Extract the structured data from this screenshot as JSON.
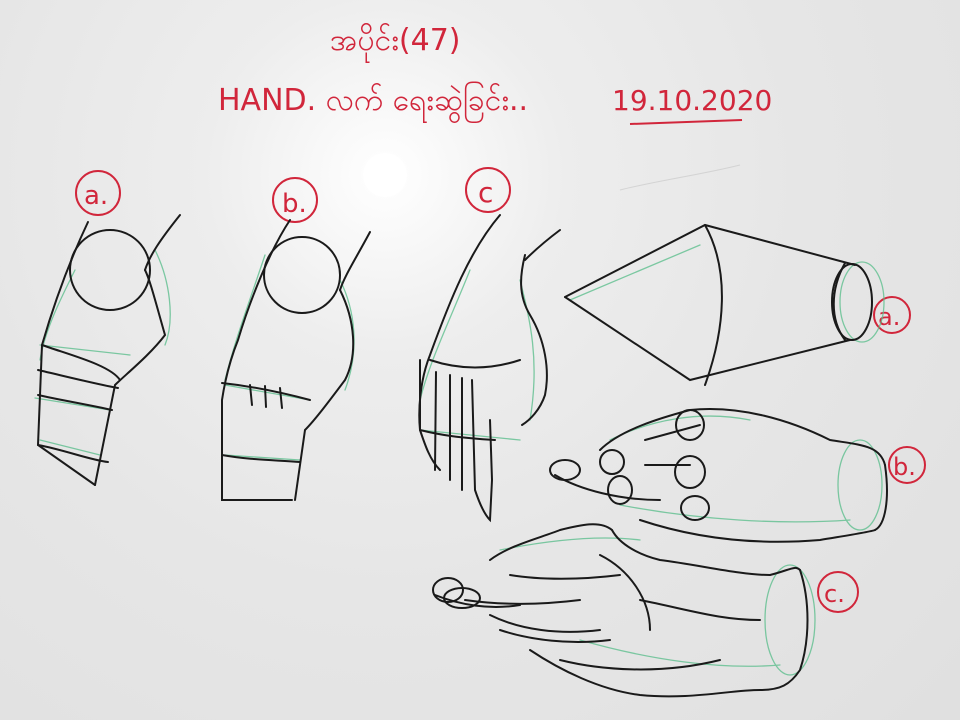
{
  "heading": {
    "lesson_number": "အပိုင်း(47)",
    "subject": "HAND. လက် ရေးဆွဲခြင်း..",
    "date": "19.10.2020"
  },
  "row_labels": {
    "left_a": "a.",
    "left_b": "b.",
    "left_c": "c",
    "right_a": "a.",
    "right_b": "b.",
    "right_c": "c."
  },
  "colors": {
    "marker_red": "#d1263b",
    "marker_black": "#1a1a1a",
    "guide_green": "#5fbf8f",
    "board_white": "#eaeaea"
  }
}
